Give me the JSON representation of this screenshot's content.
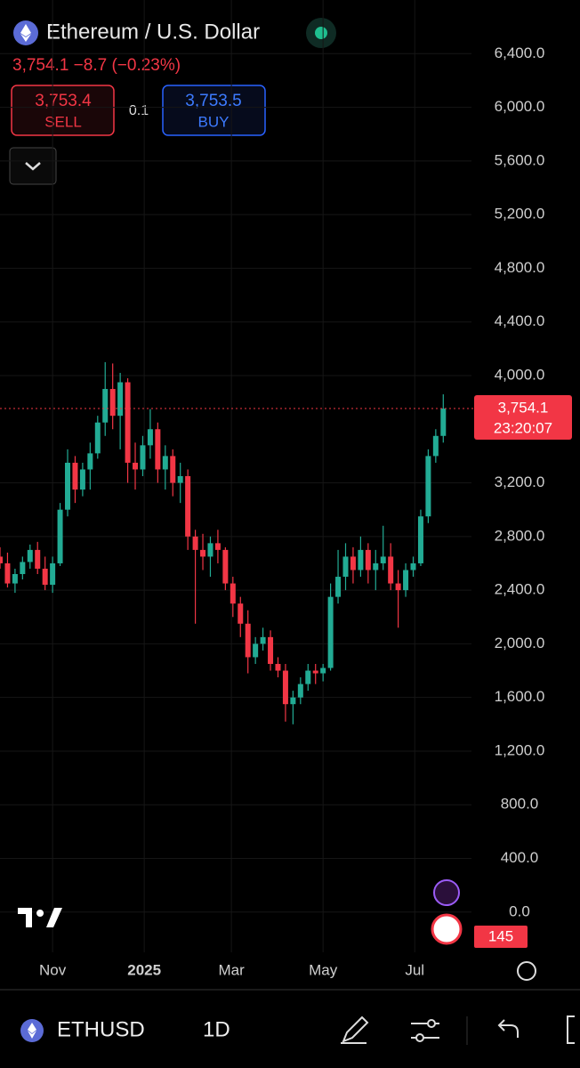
{
  "header": {
    "title": "Ethereum / U.S. Dollar",
    "quote": "3,754.1 −8.7 (−0.23%)",
    "sell_price": "3,753.4",
    "sell_label": "SELL",
    "spread": "0.1",
    "buy_price": "3,753.5",
    "buy_label": "BUY"
  },
  "chart_data": {
    "type": "candlestick",
    "x": [
      0,
      5,
      10,
      15,
      20,
      25,
      30,
      35,
      40,
      45,
      50,
      55,
      60,
      65,
      70,
      75,
      80,
      85,
      90,
      95,
      100,
      105,
      110,
      115,
      120,
      125,
      130,
      135,
      140,
      145,
      150,
      155,
      160,
      165,
      170,
      175,
      180,
      185,
      190,
      195,
      200,
      205,
      210,
      215,
      220,
      225,
      230,
      235,
      240,
      245,
      250,
      255,
      260,
      265,
      270,
      275,
      280,
      285,
      290,
      295
    ],
    "open": [
      2650,
      2600,
      2450,
      2520,
      2610,
      2700,
      2560,
      2440,
      2600,
      3000,
      3350,
      3150,
      3300,
      3420,
      3650,
      3900,
      3700,
      3950,
      3350,
      3300,
      3480,
      3600,
      3300,
      3400,
      3200,
      3250,
      2800,
      2700,
      2650,
      2750,
      2700,
      2450,
      2300,
      2150,
      1900,
      2000,
      2050,
      1850,
      1800,
      1550,
      1600,
      1700,
      1800,
      1780,
      1820,
      2350,
      2500,
      2650,
      2550,
      2700,
      2550,
      2600,
      2650,
      2450,
      2400,
      2550,
      2600,
      2950,
      3400,
      3550
    ],
    "high": [
      2720,
      2680,
      2560,
      2650,
      2740,
      2760,
      2650,
      2650,
      3050,
      3450,
      3400,
      3350,
      3500,
      3700,
      4100,
      4090,
      4020,
      3980,
      3500,
      3550,
      3750,
      3650,
      3480,
      3450,
      3350,
      3300,
      2850,
      2820,
      2800,
      2850,
      2720,
      2500,
      2350,
      2250,
      2050,
      2120,
      2100,
      1900,
      1850,
      1650,
      1750,
      1850,
      1850,
      1850,
      2450,
      2700,
      2750,
      2720,
      2800,
      2750,
      2700,
      2880,
      2750,
      2550,
      2600,
      2650,
      3000,
      3450,
      3600,
      3860
    ],
    "low": [
      2560,
      2420,
      2380,
      2480,
      2560,
      2520,
      2400,
      2380,
      2580,
      2950,
      3050,
      3100,
      3150,
      3380,
      3550,
      3600,
      3450,
      3200,
      3150,
      3250,
      3380,
      3200,
      3150,
      3100,
      3050,
      2700,
      2150,
      2550,
      2500,
      2600,
      2400,
      2200,
      2050,
      1780,
      1850,
      1950,
      1800,
      1750,
      1420,
      1400,
      1550,
      1650,
      1700,
      1720,
      1800,
      2300,
      2400,
      2450,
      2500,
      2450,
      2400,
      2550,
      2400,
      2120,
      2350,
      2500,
      2580,
      2900,
      3350,
      3500
    ],
    "close": [
      2600,
      2450,
      2520,
      2610,
      2700,
      2560,
      2440,
      2600,
      3000,
      3350,
      3150,
      3300,
      3420,
      3650,
      3900,
      3700,
      3950,
      3350,
      3300,
      3480,
      3600,
      3300,
      3400,
      3200,
      3250,
      2800,
      2700,
      2650,
      2750,
      2700,
      2450,
      2300,
      2150,
      1900,
      2000,
      2050,
      1850,
      1800,
      1550,
      1600,
      1700,
      1800,
      1780,
      1820,
      2350,
      2500,
      2650,
      2550,
      2700,
      2550,
      2600,
      2650,
      2450,
      2400,
      2550,
      2600,
      2950,
      3400,
      3550,
      3754.1
    ],
    "up_color": "#22ab94",
    "down_color": "#f23645",
    "xlim": [
      0,
      386
    ],
    "xticks": [
      {
        "value": 35,
        "label": "Nov"
      },
      {
        "value": 96,
        "label": "2025"
      },
      {
        "value": 154,
        "label": "Mar"
      },
      {
        "value": 215,
        "label": "May"
      },
      {
        "value": 276,
        "label": "Jul"
      }
    ],
    "ylim": [
      -300,
      6800
    ],
    "yticks": [
      {
        "value": 0,
        "label": "0.0"
      },
      {
        "value": 400,
        "label": "400.0"
      },
      {
        "value": 800,
        "label": "800.0"
      },
      {
        "value": 1200,
        "label": "1,200.0"
      },
      {
        "value": 1600,
        "label": "1,600.0"
      },
      {
        "value": 2000,
        "label": "2,000.0"
      },
      {
        "value": 2400,
        "label": "2,400.0"
      },
      {
        "value": 2800,
        "label": "2,800.0"
      },
      {
        "value": 3200,
        "label": "3,200.0"
      },
      {
        "value": 4000,
        "label": "4,000.0"
      },
      {
        "value": 4400,
        "label": "4,400.0"
      },
      {
        "value": 4800,
        "label": "4,800.0"
      },
      {
        "value": 5200,
        "label": "5,200.0"
      },
      {
        "value": 5600,
        "label": "5,600.0"
      },
      {
        "value": 6000,
        "label": "6,000.0"
      },
      {
        "value": 6400,
        "label": "6,400.0"
      }
    ],
    "grid": true,
    "last_price": {
      "value": 3754.1,
      "label": "3,754.1"
    },
    "countdown": "23:20:07",
    "volume_label": "145"
  },
  "footer": {
    "symbol": "ETHUSD",
    "interval": "1D"
  }
}
